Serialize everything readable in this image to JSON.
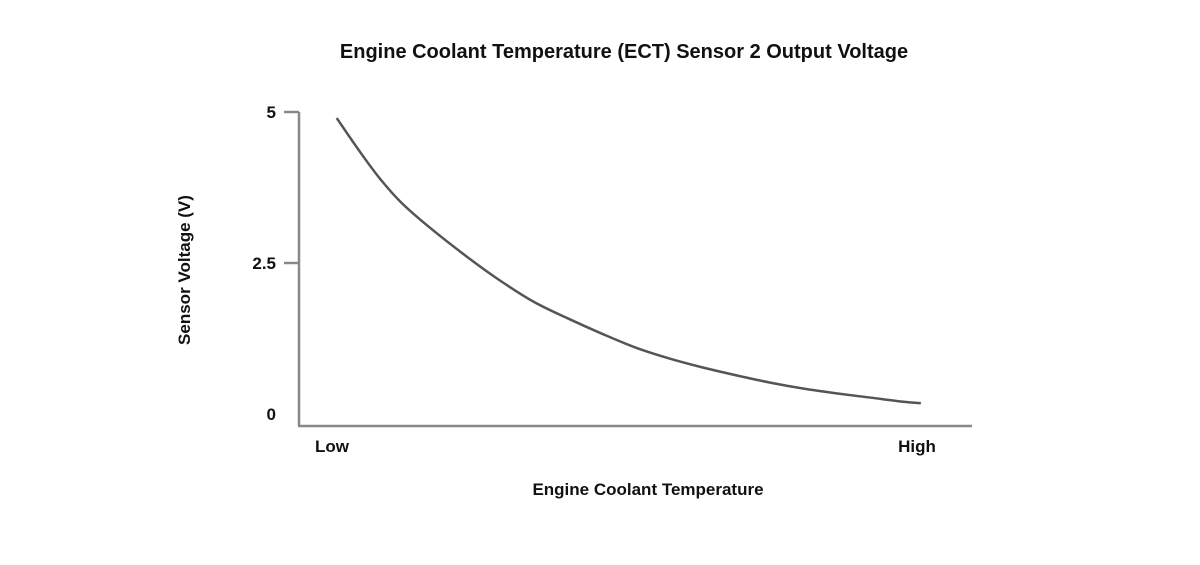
{
  "chart_data": {
    "type": "line",
    "title": "Engine Coolant Temperature (ECT) Sensor 2 Output Voltage",
    "xlabel": "Engine Coolant Temperature",
    "ylabel": "Sensor Voltage (V)",
    "x_tick_labels": [
      "Low",
      "High"
    ],
    "y_ticks": [
      {
        "value": 5,
        "label": "5"
      },
      {
        "value": 2.5,
        "label": "2.5"
      },
      {
        "value": 0,
        "label": "0"
      }
    ],
    "xlim": [
      0,
      100
    ],
    "ylim": [
      0,
      5
    ],
    "grid": false,
    "series": [
      {
        "name": "Output Voltage",
        "color": "#555555",
        "x": [
          5.6,
          9,
          12,
          15.2,
          19.5,
          25,
          30,
          35,
          40,
          45,
          50,
          55,
          60,
          65,
          70,
          75,
          80,
          85,
          90,
          92.4
        ],
        "y": [
          4.9,
          4.35,
          3.9,
          3.5,
          3.08,
          2.6,
          2.2,
          1.85,
          1.58,
          1.33,
          1.1,
          0.92,
          0.77,
          0.64,
          0.52,
          0.42,
          0.34,
          0.27,
          0.2,
          0.18
        ]
      }
    ]
  }
}
